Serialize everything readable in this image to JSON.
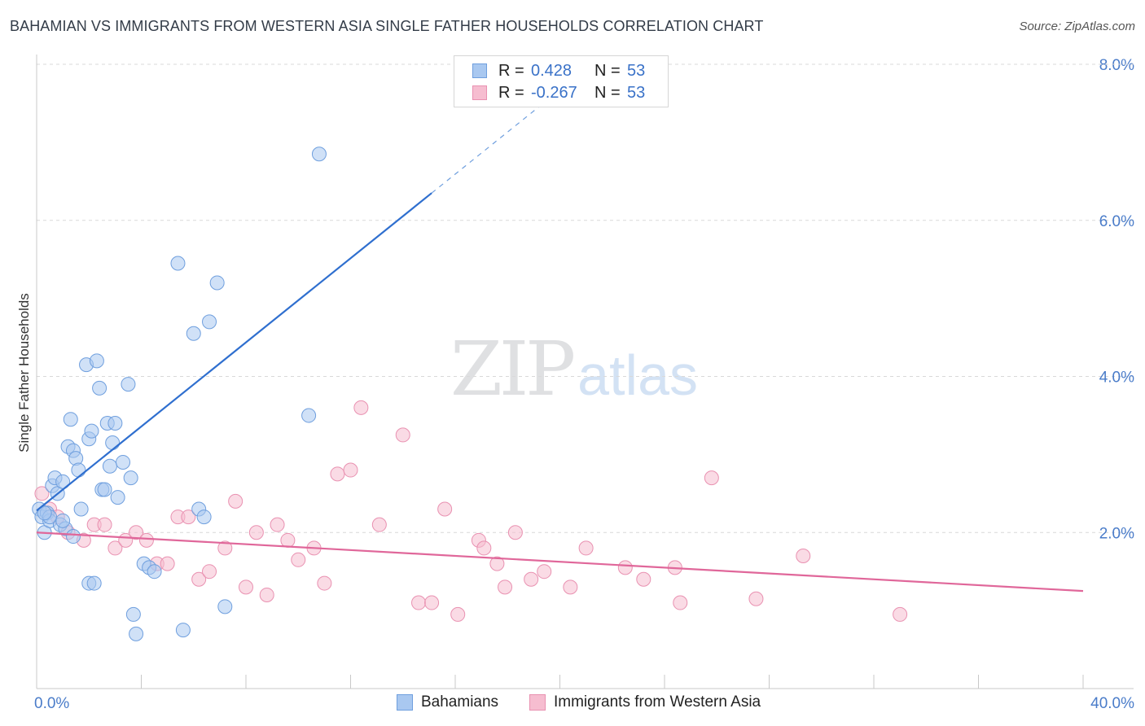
{
  "header": {
    "title": "BAHAMIAN VS IMMIGRANTS FROM WESTERN ASIA SINGLE FATHER HOUSEHOLDS CORRELATION CHART",
    "source": "Source: ZipAtlas.com"
  },
  "watermark": {
    "zip": "ZIP",
    "atlas": "atlas"
  },
  "legend": {
    "r_label": "R =",
    "n_label": "N =",
    "rows": [
      {
        "r": "0.428",
        "n": "53"
      },
      {
        "r": "-0.267",
        "n": "53"
      }
    ]
  },
  "bottom_legend": {
    "series1": "Bahamians",
    "series2": "Immigrants from Western Asia"
  },
  "colors": {
    "series1_fill": "#a9c8f0",
    "series1_stroke": "#6f9fde",
    "series1_line": "#2f6fcf",
    "series2_fill": "#f6bdd0",
    "series2_stroke": "#e991b1",
    "series2_line": "#e0679a",
    "tick": "#4a7cc9",
    "grid": "#d9d9d9"
  },
  "chart_data": {
    "type": "scatter",
    "title": "BAHAMIAN VS IMMIGRANTS FROM WESTERN ASIA SINGLE FATHER HOUSEHOLDS CORRELATION CHART",
    "xlabel": "",
    "ylabel": "Single Father Households",
    "xlim": [
      0,
      40
    ],
    "ylim": [
      0,
      8.0
    ],
    "x_tick_labels": [
      "0.0%",
      "40.0%"
    ],
    "y_ticks": [
      2,
      4,
      6,
      8
    ],
    "y_tick_labels": [
      "2.0%",
      "4.0%",
      "6.0%",
      "8.0%"
    ],
    "grid": "horizontal dashed",
    "legend_position": "top-center",
    "series": [
      {
        "name": "Bahamians",
        "r": 0.428,
        "n": 53,
        "trend": {
          "x": [
            0,
            15.1
          ],
          "y": [
            2.28,
            6.35
          ],
          "dashed_extension_to_x": 20
        },
        "points": [
          [
            0.1,
            2.3
          ],
          [
            0.2,
            2.2
          ],
          [
            0.3,
            2.0
          ],
          [
            0.4,
            2.25
          ],
          [
            0.5,
            2.15
          ],
          [
            0.6,
            2.6
          ],
          [
            0.7,
            2.7
          ],
          [
            0.8,
            2.5
          ],
          [
            0.9,
            2.1
          ],
          [
            1.0,
            2.65
          ],
          [
            1.1,
            2.05
          ],
          [
            1.2,
            3.1
          ],
          [
            1.3,
            3.45
          ],
          [
            1.4,
            3.05
          ],
          [
            1.5,
            2.95
          ],
          [
            1.6,
            2.8
          ],
          [
            1.7,
            2.3
          ],
          [
            1.9,
            4.15
          ],
          [
            2.0,
            3.2
          ],
          [
            2.1,
            3.3
          ],
          [
            2.3,
            4.2
          ],
          [
            2.4,
            3.85
          ],
          [
            2.5,
            2.55
          ],
          [
            2.6,
            2.55
          ],
          [
            2.7,
            3.4
          ],
          [
            2.8,
            2.85
          ],
          [
            2.9,
            3.15
          ],
          [
            3.0,
            3.4
          ],
          [
            3.1,
            2.45
          ],
          [
            3.3,
            2.9
          ],
          [
            3.5,
            3.9
          ],
          [
            3.6,
            2.7
          ],
          [
            2.0,
            1.35
          ],
          [
            2.2,
            1.35
          ],
          [
            3.7,
            0.95
          ],
          [
            3.8,
            0.7
          ],
          [
            4.1,
            1.6
          ],
          [
            4.3,
            1.55
          ],
          [
            4.5,
            1.5
          ],
          [
            5.4,
            5.45
          ],
          [
            5.6,
            0.75
          ],
          [
            6.0,
            4.55
          ],
          [
            6.2,
            2.3
          ],
          [
            6.4,
            2.2
          ],
          [
            6.6,
            4.7
          ],
          [
            6.9,
            5.2
          ],
          [
            7.2,
            1.05
          ],
          [
            10.4,
            3.5
          ],
          [
            0.5,
            2.2
          ],
          [
            1.0,
            2.15
          ],
          [
            1.4,
            1.95
          ],
          [
            0.3,
            2.25
          ],
          [
            10.8,
            6.85
          ]
        ]
      },
      {
        "name": "Immigrants from Western Asia",
        "r": -0.267,
        "n": 53,
        "trend": {
          "x": [
            0,
            40
          ],
          "y": [
            2.0,
            1.25
          ]
        },
        "points": [
          [
            0.2,
            2.5
          ],
          [
            0.5,
            2.3
          ],
          [
            0.8,
            2.2
          ],
          [
            1.2,
            2.0
          ],
          [
            1.8,
            1.9
          ],
          [
            2.2,
            2.1
          ],
          [
            2.6,
            2.1
          ],
          [
            3.0,
            1.8
          ],
          [
            3.4,
            1.9
          ],
          [
            3.8,
            2.0
          ],
          [
            4.2,
            1.9
          ],
          [
            4.6,
            1.6
          ],
          [
            5.0,
            1.6
          ],
          [
            5.4,
            2.2
          ],
          [
            5.8,
            2.2
          ],
          [
            6.2,
            1.4
          ],
          [
            6.6,
            1.5
          ],
          [
            7.2,
            1.8
          ],
          [
            7.6,
            2.4
          ],
          [
            8.0,
            1.3
          ],
          [
            8.4,
            2.0
          ],
          [
            8.8,
            1.2
          ],
          [
            9.2,
            2.1
          ],
          [
            9.6,
            1.9
          ],
          [
            10.0,
            1.65
          ],
          [
            10.6,
            1.8
          ],
          [
            11.0,
            1.35
          ],
          [
            11.5,
            2.75
          ],
          [
            12.0,
            2.8
          ],
          [
            12.4,
            3.6
          ],
          [
            13.1,
            2.1
          ],
          [
            14.0,
            3.25
          ],
          [
            14.6,
            1.1
          ],
          [
            15.1,
            1.1
          ],
          [
            15.6,
            2.3
          ],
          [
            16.1,
            0.95
          ],
          [
            16.9,
            1.9
          ],
          [
            17.1,
            1.8
          ],
          [
            17.6,
            1.6
          ],
          [
            17.9,
            1.3
          ],
          [
            18.3,
            2.0
          ],
          [
            18.9,
            1.4
          ],
          [
            19.4,
            1.5
          ],
          [
            20.4,
            1.3
          ],
          [
            21.0,
            1.8
          ],
          [
            22.5,
            1.55
          ],
          [
            23.2,
            1.4
          ],
          [
            24.4,
            1.55
          ],
          [
            24.6,
            1.1
          ],
          [
            25.8,
            2.7
          ],
          [
            27.5,
            1.15
          ],
          [
            29.3,
            1.7
          ],
          [
            33.0,
            0.95
          ]
        ]
      }
    ]
  }
}
